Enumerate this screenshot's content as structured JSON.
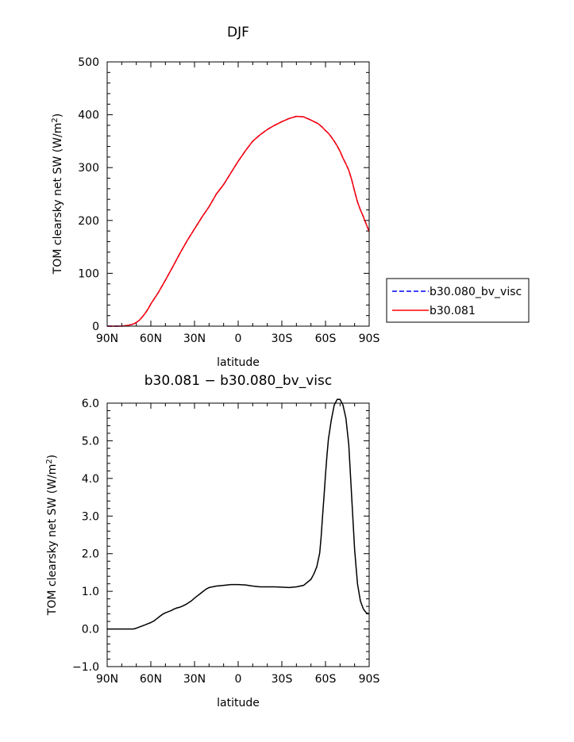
{
  "figure": {
    "background": "#ffffff"
  },
  "chart_data": [
    {
      "type": "line",
      "title": "DJF",
      "xlabel": "latitude",
      "ylabel_parts": {
        "prefix": "TOM clearsky net SW (W/m",
        "sup": "2",
        "suffix": ")"
      },
      "xlim": [
        -90,
        90
      ],
      "ylim": [
        0,
        500
      ],
      "xticks": [
        -90,
        -60,
        -30,
        0,
        30,
        60,
        90
      ],
      "xticklabels": [
        "90N",
        "60N",
        "30N",
        "0",
        "30S",
        "60S",
        "90S"
      ],
      "yticks": [
        0,
        100,
        200,
        300,
        400,
        500
      ],
      "yticklabels": [
        "0",
        "100",
        "200",
        "300",
        "400",
        "500"
      ],
      "grid": false,
      "legend": {
        "placement": "right-outside"
      },
      "series": [
        {
          "name": "b30.080_bv_visc",
          "color": "#0000ff",
          "dash": "dashed",
          "x": [
            -90,
            -85,
            -80,
            -75,
            -72,
            -70,
            -68,
            -66,
            -64,
            -62,
            -60,
            -55,
            -50,
            -45,
            -40,
            -35,
            -30,
            -25,
            -20,
            -15,
            -10,
            -5,
            0,
            5,
            10,
            15,
            20,
            25,
            30,
            35,
            40,
            45,
            50,
            55,
            58,
            60,
            62,
            64,
            66,
            68,
            70,
            72,
            74,
            76,
            78,
            80,
            82,
            84,
            86,
            88,
            90
          ],
          "y": [
            0,
            0,
            0,
            2,
            4,
            7,
            11,
            17,
            24,
            32,
            42,
            63,
            87,
            112,
            138,
            162,
            184,
            206,
            226,
            250,
            268,
            290,
            312,
            332,
            350,
            362,
            372,
            380,
            387,
            393,
            397,
            396,
            390,
            383,
            376,
            370,
            365,
            358,
            350,
            341,
            331,
            318,
            307,
            295,
            277,
            255,
            235,
            220,
            207,
            193,
            179
          ]
        },
        {
          "name": "b30.081",
          "color": "#ff0000",
          "dash": "solid",
          "x": [
            -90,
            -85,
            -80,
            -75,
            -72,
            -70,
            -68,
            -66,
            -64,
            -62,
            -60,
            -55,
            -50,
            -45,
            -40,
            -35,
            -30,
            -25,
            -20,
            -15,
            -10,
            -5,
            0,
            5,
            10,
            15,
            20,
            25,
            30,
            35,
            40,
            45,
            50,
            55,
            58,
            60,
            62,
            64,
            66,
            68,
            70,
            72,
            74,
            76,
            78,
            80,
            82,
            84,
            86,
            88,
            90
          ],
          "y": [
            0,
            0,
            0,
            2,
            4,
            7,
            11,
            17,
            24,
            32,
            42,
            63,
            87,
            112,
            138,
            162,
            184,
            206,
            226,
            250,
            268,
            290,
            312,
            332,
            350,
            362,
            372,
            380,
            387,
            393,
            397,
            396,
            390,
            383,
            376,
            370,
            365,
            358,
            350,
            341,
            331,
            318,
            307,
            295,
            277,
            255,
            235,
            220,
            207,
            193,
            179
          ]
        }
      ]
    },
    {
      "type": "line",
      "title": "b30.081 − b30.080_bv_visc",
      "xlabel": "latitude",
      "ylabel_parts": {
        "prefix": "TOM clearsky net SW (W/m",
        "sup": "2",
        "suffix": ")"
      },
      "xlim": [
        -90,
        90
      ],
      "ylim": [
        -1.0,
        6.0
      ],
      "xticks": [
        -90,
        -60,
        -30,
        0,
        30,
        60,
        90
      ],
      "xticklabels": [
        "90N",
        "60N",
        "30N",
        "0",
        "30S",
        "60S",
        "90S"
      ],
      "yticks": [
        -1,
        0,
        1,
        2,
        3,
        4,
        5,
        6
      ],
      "yticklabels": [
        "−1.0",
        "0.0",
        "1.0",
        "2.0",
        "3.0",
        "4.0",
        "5.0",
        "6.0"
      ],
      "grid": false,
      "series": [
        {
          "color": "#000000",
          "dash": "solid",
          "x": [
            -90,
            -85,
            -80,
            -75,
            -72,
            -70,
            -68,
            -66,
            -64,
            -62,
            -60,
            -58,
            -56,
            -54,
            -52,
            -50,
            -48,
            -46,
            -44,
            -42,
            -40,
            -38,
            -36,
            -34,
            -32,
            -30,
            -28,
            -26,
            -24,
            -22,
            -20,
            -15,
            -10,
            -5,
            0,
            5,
            10,
            15,
            20,
            25,
            30,
            35,
            40,
            45,
            50,
            52,
            54,
            56,
            57,
            58,
            59,
            60,
            61,
            62,
            64,
            66,
            68,
            70,
            72,
            74,
            76,
            78,
            80,
            82,
            84,
            86,
            88,
            90
          ],
          "y": [
            0,
            0,
            0,
            0,
            0,
            0.02,
            0.05,
            0.08,
            0.11,
            0.14,
            0.17,
            0.21,
            0.27,
            0.33,
            0.39,
            0.43,
            0.46,
            0.49,
            0.53,
            0.56,
            0.58,
            0.61,
            0.65,
            0.7,
            0.75,
            0.82,
            0.88,
            0.94,
            1.0,
            1.06,
            1.1,
            1.14,
            1.16,
            1.18,
            1.18,
            1.17,
            1.14,
            1.12,
            1.12,
            1.12,
            1.11,
            1.1,
            1.12,
            1.16,
            1.32,
            1.46,
            1.65,
            2.02,
            2.45,
            3.0,
            3.55,
            4.1,
            4.6,
            5.05,
            5.55,
            5.95,
            6.1,
            6.1,
            5.95,
            5.6,
            4.9,
            3.5,
            2.1,
            1.2,
            0.74,
            0.53,
            0.43,
            0.4
          ]
        }
      ]
    }
  ]
}
